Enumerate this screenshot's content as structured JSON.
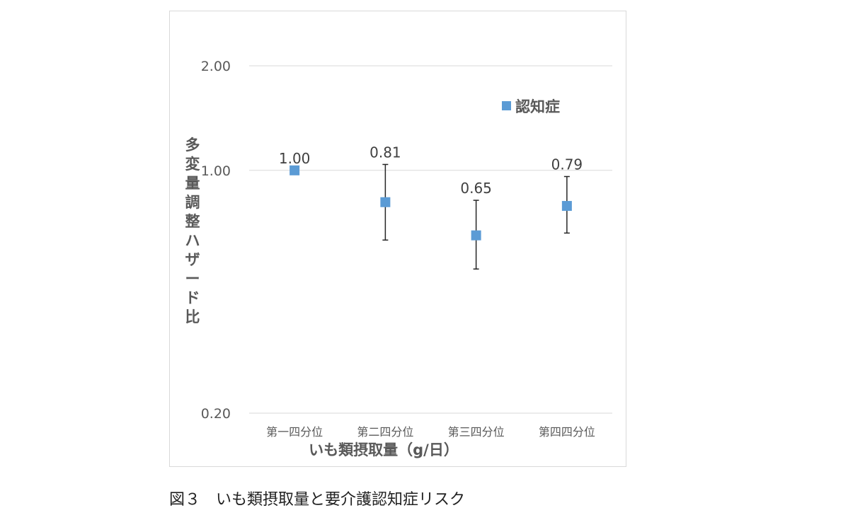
{
  "chart_data": {
    "type": "scatter",
    "y_scale": "log",
    "ylim": [
      0.2,
      2.0
    ],
    "y_ticks": [
      {
        "value": 2.0,
        "label": "2.00"
      },
      {
        "value": 1.0,
        "label": "1.00"
      },
      {
        "value": 0.2,
        "label": "0.20"
      }
    ],
    "categories": [
      "第一四分位",
      "第二四分位",
      "第三四分位",
      "第四四分位"
    ],
    "series": [
      {
        "name": "認知症",
        "color": "#5b9bd5",
        "values": [
          1.0,
          0.81,
          0.65,
          0.79
        ],
        "lower": [
          null,
          0.63,
          0.52,
          0.66
        ],
        "upper": [
          null,
          1.04,
          0.82,
          0.96
        ],
        "labels": [
          "1.00",
          "0.81",
          "0.65",
          "0.79"
        ]
      }
    ],
    "xlabel": "いも類摂取量（g/日）",
    "ylabel": "多変量調整ハザード比",
    "legend_position": "top-right",
    "grid": true
  },
  "caption": "図３　いも類摂取量と要介護認知症リスク"
}
